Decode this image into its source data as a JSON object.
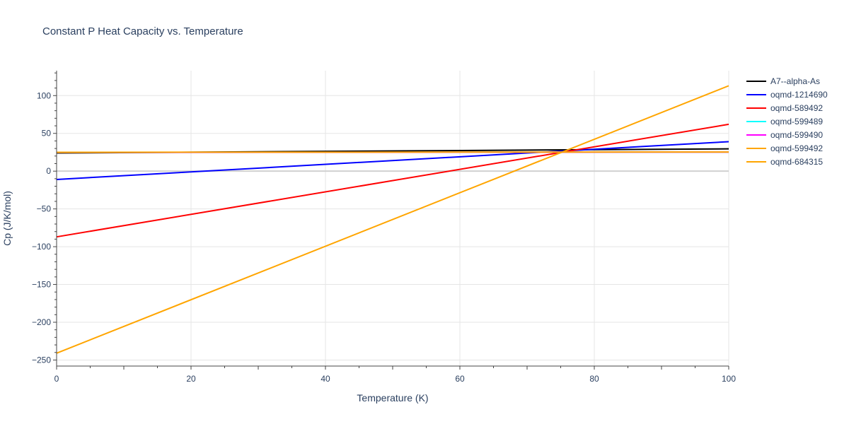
{
  "chart_data": {
    "type": "line",
    "title": "Constant P Heat Capacity vs. Temperature",
    "xlabel": "Temperature (K)",
    "ylabel": "Cp (J/K/mol)",
    "xlim": [
      0,
      100
    ],
    "ylim": [
      -258,
      133
    ],
    "x_ticks": [
      0,
      20,
      40,
      60,
      80,
      100
    ],
    "y_ticks": [
      -250,
      -200,
      -150,
      -100,
      -50,
      0,
      50,
      100
    ],
    "grid": true,
    "legend_position": "right",
    "series": [
      {
        "name": "A7--alpha-As",
        "color": "#000000",
        "x": [
          0,
          100
        ],
        "y": [
          24,
          29.5
        ]
      },
      {
        "name": "oqmd-1214690",
        "color": "#0000ff",
        "x": [
          0,
          100
        ],
        "y": [
          -11,
          39
        ]
      },
      {
        "name": "oqmd-589492",
        "color": "#ff0000",
        "x": [
          0,
          100
        ],
        "y": [
          -87,
          62
        ]
      },
      {
        "name": "oqmd-599489",
        "color": "#00ffff",
        "x": [
          0,
          100
        ],
        "y": [
          24.8,
          25.2
        ]
      },
      {
        "name": "oqmd-599490",
        "color": "#ff00ff",
        "x": [
          0,
          100
        ],
        "y": [
          24.8,
          25.2
        ]
      },
      {
        "name": "oqmd-599492",
        "color": "#ffa500",
        "x": [
          0,
          100
        ],
        "y": [
          25.0,
          25.3
        ]
      },
      {
        "name": "oqmd-684315",
        "color": "#ffa500",
        "x": [
          0,
          100
        ],
        "y": [
          -241,
          113
        ]
      }
    ]
  }
}
